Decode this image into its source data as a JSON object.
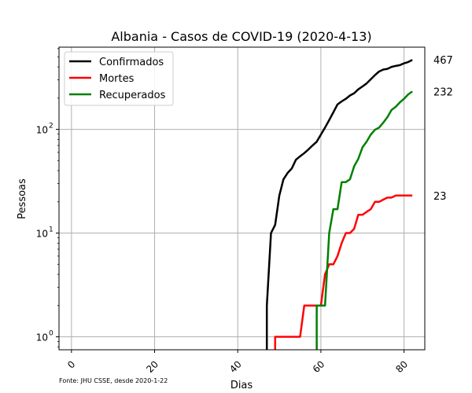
{
  "chart_data": {
    "type": "line",
    "title": "Albania - Casos de COVID-19 (2020-4-13)",
    "xlabel": "Dias",
    "ylabel": "Pessoas",
    "yscale": "log",
    "xlim": [
      -3,
      85
    ],
    "ylim": [
      0.75,
      620
    ],
    "x_ticks": [
      0,
      20,
      40,
      60,
      80
    ],
    "y_ticks": [
      {
        "value": 1,
        "label": "10",
        "exp": "0"
      },
      {
        "value": 10,
        "label": "10",
        "exp": "1"
      },
      {
        "value": 100,
        "label": "10",
        "exp": "2"
      }
    ],
    "grid": true,
    "legend_position": "top-left",
    "footnote": "Fonte: JHU CSSE, desde 2020-1-22",
    "series": [
      {
        "name": "Confirmados",
        "color": "#000000",
        "end_label": "467",
        "points": [
          [
            47,
            0.5
          ],
          [
            47,
            2
          ],
          [
            48,
            10
          ],
          [
            49,
            12
          ],
          [
            50,
            23
          ],
          [
            51,
            33
          ],
          [
            52,
            38
          ],
          [
            53,
            42
          ],
          [
            54,
            51
          ],
          [
            55,
            55
          ],
          [
            56,
            59
          ],
          [
            57,
            64
          ],
          [
            58,
            70
          ],
          [
            59,
            76
          ],
          [
            60,
            89
          ],
          [
            61,
            104
          ],
          [
            62,
            123
          ],
          [
            63,
            146
          ],
          [
            64,
            174
          ],
          [
            65,
            186
          ],
          [
            66,
            197
          ],
          [
            67,
            212
          ],
          [
            68,
            223
          ],
          [
            69,
            243
          ],
          [
            70,
            259
          ],
          [
            71,
            277
          ],
          [
            72,
            304
          ],
          [
            73,
            333
          ],
          [
            74,
            361
          ],
          [
            75,
            377
          ],
          [
            76,
            383
          ],
          [
            77,
            400
          ],
          [
            78,
            409
          ],
          [
            79,
            416
          ],
          [
            80,
            433
          ],
          [
            81,
            446
          ],
          [
            82,
            467
          ]
        ]
      },
      {
        "name": "Mortes",
        "color": "#ff0000",
        "end_label": "23",
        "points": [
          [
            49,
            0.5
          ],
          [
            49,
            1
          ],
          [
            50,
            1
          ],
          [
            51,
            1
          ],
          [
            52,
            1
          ],
          [
            53,
            1
          ],
          [
            54,
            1
          ],
          [
            55,
            1
          ],
          [
            56,
            2
          ],
          [
            57,
            2
          ],
          [
            58,
            2
          ],
          [
            59,
            2
          ],
          [
            60,
            2
          ],
          [
            61,
            4
          ],
          [
            62,
            5
          ],
          [
            63,
            5
          ],
          [
            64,
            6
          ],
          [
            65,
            8
          ],
          [
            66,
            10
          ],
          [
            67,
            10
          ],
          [
            68,
            11
          ],
          [
            69,
            15
          ],
          [
            70,
            15
          ],
          [
            71,
            16
          ],
          [
            72,
            17
          ],
          [
            73,
            20
          ],
          [
            74,
            20
          ],
          [
            75,
            21
          ],
          [
            76,
            22
          ],
          [
            77,
            22
          ],
          [
            78,
            23
          ],
          [
            79,
            23
          ],
          [
            80,
            23
          ],
          [
            81,
            23
          ],
          [
            82,
            23
          ]
        ]
      },
      {
        "name": "Recuperados",
        "color": "#008000",
        "end_label": "232",
        "points": [
          [
            59,
            0.5
          ],
          [
            59,
            2
          ],
          [
            60,
            2
          ],
          [
            61,
            2
          ],
          [
            62,
            10
          ],
          [
            63,
            17
          ],
          [
            64,
            17
          ],
          [
            65,
            31
          ],
          [
            66,
            31
          ],
          [
            67,
            33
          ],
          [
            68,
            44
          ],
          [
            69,
            52
          ],
          [
            70,
            67
          ],
          [
            71,
            76
          ],
          [
            72,
            89
          ],
          [
            73,
            99
          ],
          [
            74,
            104
          ],
          [
            75,
            116
          ],
          [
            76,
            131
          ],
          [
            77,
            154
          ],
          [
            78,
            165
          ],
          [
            79,
            182
          ],
          [
            80,
            197
          ],
          [
            81,
            217
          ],
          [
            82,
            232
          ]
        ]
      }
    ]
  }
}
